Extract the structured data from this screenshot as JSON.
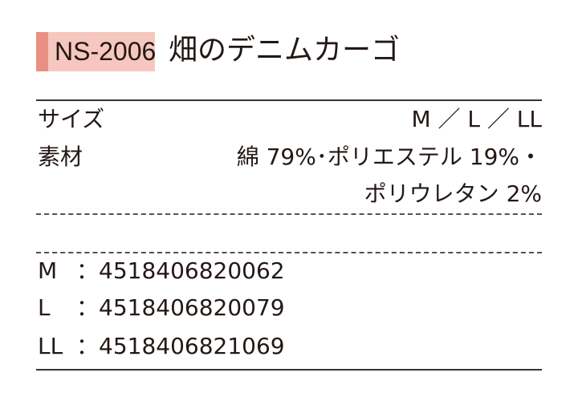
{
  "header": {
    "code": "NS-2006",
    "title": "畑のデニムカーゴ"
  },
  "specs": {
    "size_label": "サイズ",
    "size_value": "M ／ L ／ LL",
    "material_label": "素材",
    "material_line1": "綿 79%･ポリエステル 19%・",
    "material_line2": "ポリウレタン 2%"
  },
  "jan": [
    {
      "size": "M",
      "sep": "：",
      "code": "4518406820062"
    },
    {
      "size": "L",
      "sep": "：",
      "code": "4518406820079"
    },
    {
      "size": "LL",
      "sep": "：",
      "code": "4518406821069"
    }
  ],
  "colors": {
    "badge": "#f6c7be",
    "badge_strip": "#e98f83"
  }
}
